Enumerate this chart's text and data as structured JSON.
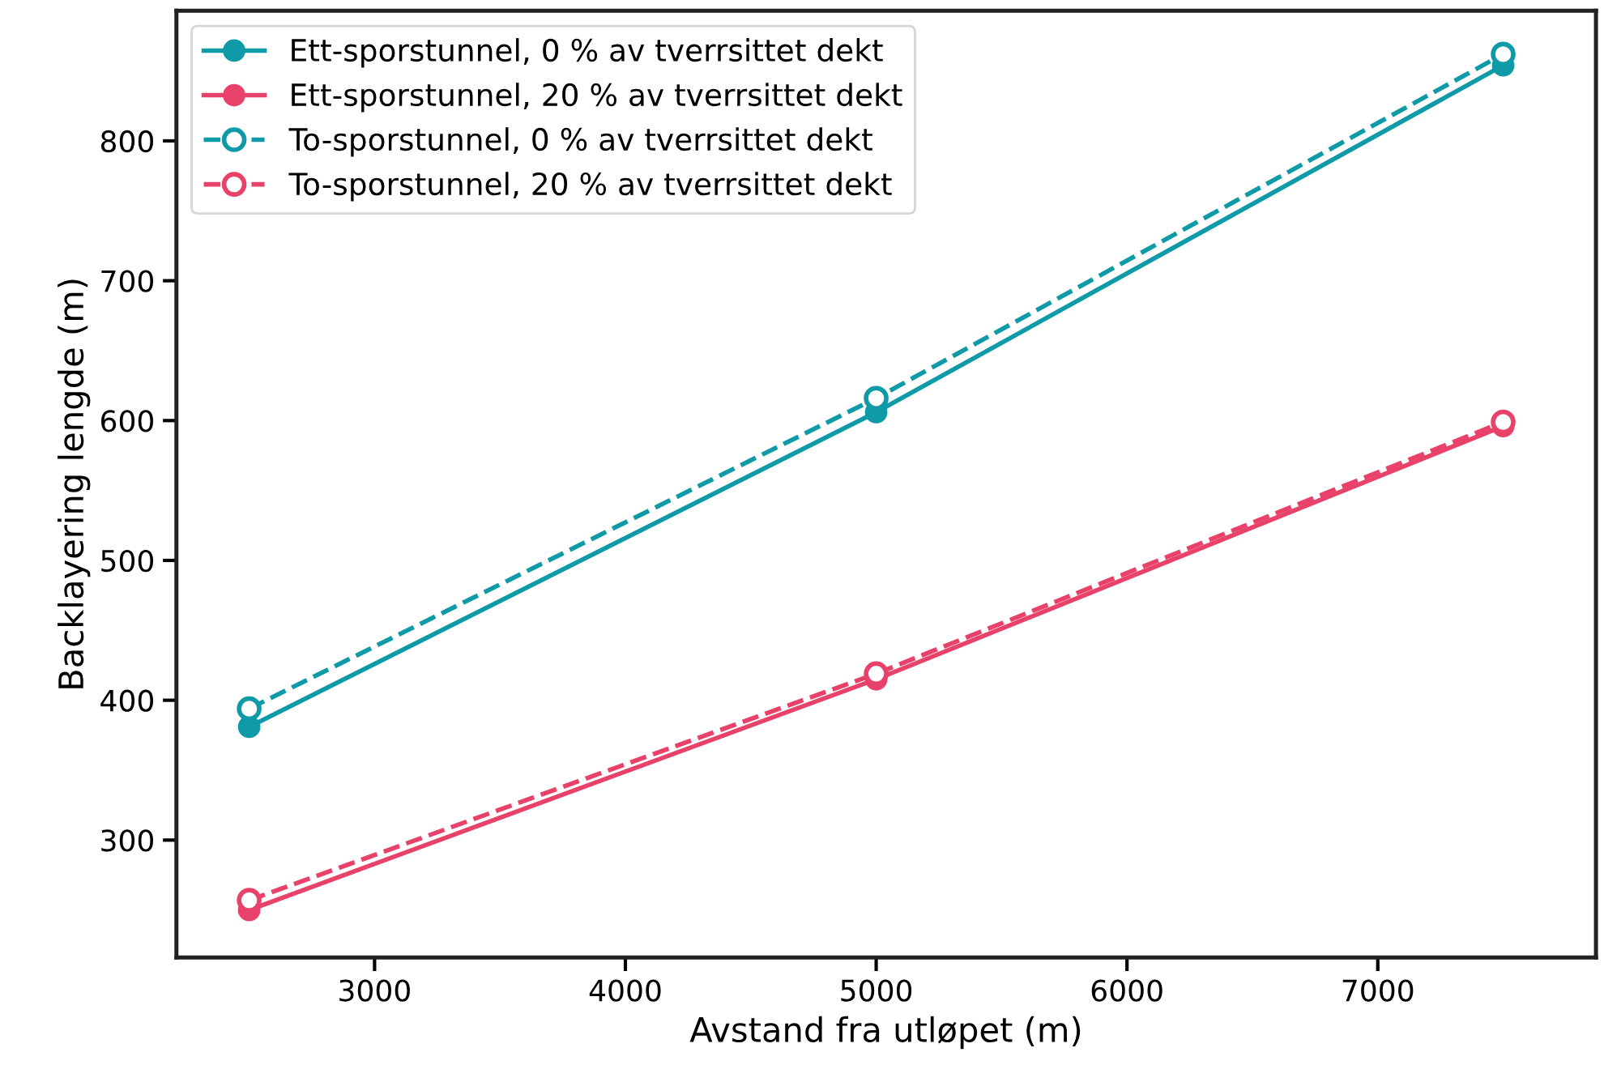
{
  "chart_data": {
    "type": "line",
    "xlabel": "Avstand fra utløpet (m)",
    "ylabel": "Backlayering lengde (m)",
    "x": [
      2500,
      5000,
      7500
    ],
    "series": [
      {
        "name": "Ett-sporstunnel, 0 % av tverrsittet dekt",
        "color": "#0e9aa7",
        "line_style": "solid",
        "values": [
          381,
          606,
          854
        ]
      },
      {
        "name": "Ett-sporstunnel, 20 % av tverrsittet dekt",
        "color": "#e8426a",
        "line_style": "solid",
        "values": [
          250,
          415,
          596
        ]
      },
      {
        "name": "To-sporstunnel, 0 % av tverrsittet dekt",
        "color": "#0e9aa7",
        "line_style": "dashed",
        "values": [
          394,
          616,
          862
        ]
      },
      {
        "name": "To-sporstunnel, 20 % av tverrsittet dekt",
        "color": "#e8426a",
        "line_style": "dashed",
        "values": [
          257,
          419,
          599
        ]
      }
    ],
    "xlim": [
      2210,
      7870
    ],
    "ylim": [
      216,
      893
    ],
    "xticks": [
      3000,
      4000,
      5000,
      6000,
      7000
    ],
    "yticks": [
      300,
      400,
      500,
      600,
      700,
      800
    ],
    "marker": "circle",
    "grid": false,
    "legend": "top left"
  }
}
